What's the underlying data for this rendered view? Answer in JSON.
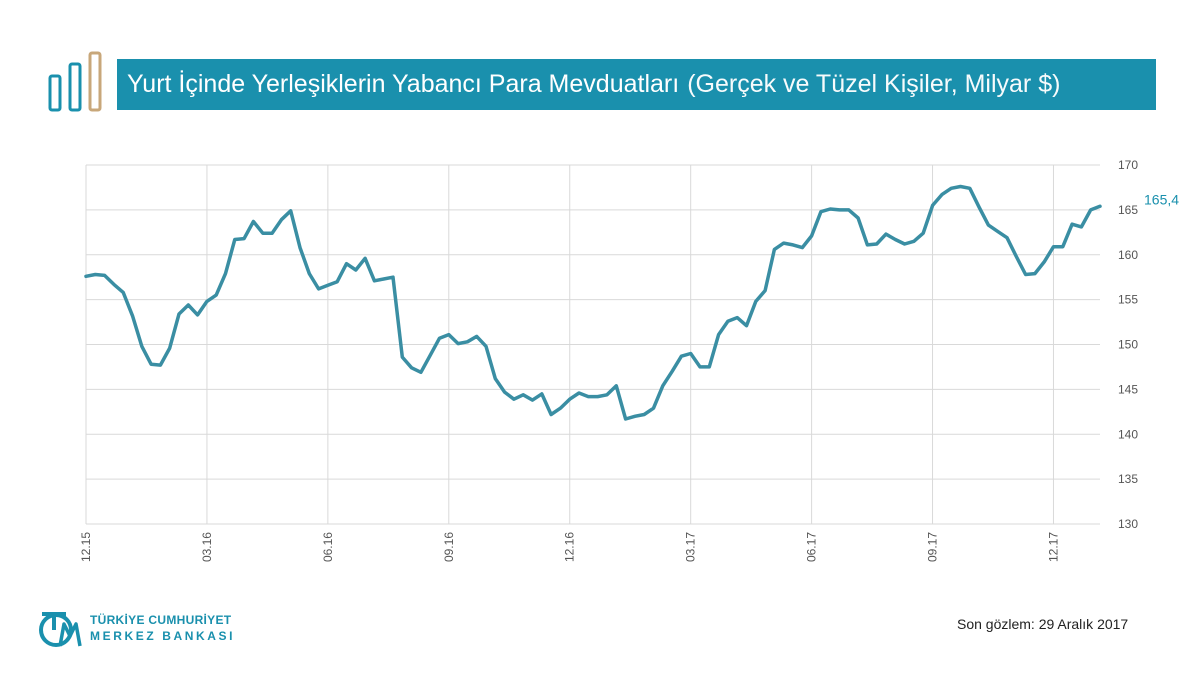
{
  "header": {
    "title": "Yurt İçinde Yerleşiklerin Yabancı Para Mevduatları",
    "subtitle": "(Gerçek ve Tüzel Kişiler, Milyar $)",
    "accent_color": "#1a90ad",
    "logo_bar_colors": [
      "#1a90ad",
      "#1a90ad",
      "#c8a77a"
    ]
  },
  "chart_data": {
    "type": "line",
    "ylim": [
      130,
      170
    ],
    "yticks": [
      130,
      135,
      140,
      145,
      150,
      155,
      160,
      165,
      170
    ],
    "grid": true,
    "yaxis_position": "right",
    "xtick_labels": [
      "12.15",
      "03.16",
      "06.16",
      "09.16",
      "12.16",
      "03.17",
      "06.17",
      "09.17",
      "12.17"
    ],
    "xtick_indices": [
      0,
      13,
      26,
      39,
      52,
      65,
      78,
      91,
      104
    ],
    "series": [
      {
        "color": "#3a8ea3",
        "values": [
          157.6,
          157.8,
          157.7,
          156.7,
          155.8,
          153.2,
          149.8,
          147.8,
          147.7,
          149.6,
          153.4,
          154.4,
          153.3,
          154.8,
          155.5,
          157.9,
          161.7,
          161.8,
          163.7,
          162.4,
          162.4,
          163.9,
          164.9,
          160.8,
          157.9,
          156.2,
          156.6,
          157.0,
          159.0,
          158.3,
          159.6,
          157.1,
          157.3,
          157.5,
          148.6,
          147.4,
          146.9,
          148.8,
          150.7,
          151.1,
          150.1,
          150.3,
          150.9,
          149.8,
          146.2,
          144.7,
          143.9,
          144.4,
          143.8,
          144.5,
          142.2,
          142.9,
          143.9,
          144.6,
          144.2,
          144.2,
          144.4,
          145.4,
          141.7,
          142.0,
          142.2,
          142.9,
          145.4,
          147.0,
          148.7,
          149.0,
          147.5,
          147.5,
          151.1,
          152.6,
          153.0,
          152.1,
          154.8,
          156.0,
          160.6,
          161.3,
          161.1,
          160.8,
          162.1,
          164.8,
          165.1,
          165.0,
          165.0,
          164.1,
          161.1,
          161.2,
          162.3,
          161.7,
          161.2,
          161.5,
          162.4,
          165.5,
          166.7,
          167.4,
          167.6,
          167.4,
          165.3,
          163.3,
          162.6,
          161.9,
          159.8,
          157.8,
          157.9,
          159.2,
          160.9,
          160.9,
          163.4,
          163.1,
          165.0,
          165.4
        ]
      }
    ],
    "last_value_label": "165,4"
  },
  "footer": {
    "note": "Son gözlem: 29 Aralık 2017",
    "bank_line1": "TÜRKİYE CUMHURİYET",
    "bank_line2": "MERKEZ BANKASI",
    "logo_letters": "TCMB"
  }
}
